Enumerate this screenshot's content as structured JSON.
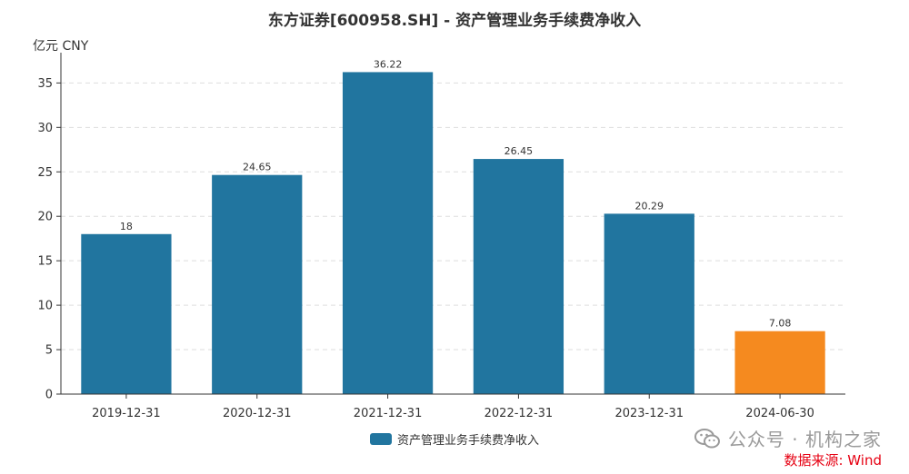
{
  "chart_data": {
    "type": "bar",
    "title": "东方证券[600958.SH] - 资产管理业务手续费净收入",
    "ylabel": "亿元  CNY",
    "xlabel": "",
    "categories": [
      "2019-12-31",
      "2020-12-31",
      "2021-12-31",
      "2022-12-31",
      "2023-12-31",
      "2024-06-30"
    ],
    "series": [
      {
        "name": "资产管理业务手续费净收入",
        "values": [
          18,
          24.65,
          36.22,
          26.45,
          20.29,
          7.08
        ],
        "data_labels": [
          "18",
          "24.65",
          "36.22",
          "26.45",
          "20.29",
          "7.08"
        ]
      }
    ],
    "ylim": [
      0,
      38
    ],
    "yticks": [
      0,
      5,
      10,
      15,
      20,
      25,
      30,
      35
    ],
    "grid": true,
    "legend_position": "bottom-center",
    "colors": {
      "bar": "#21759f",
      "highlight": "#f58a1f",
      "highlight_index": 5
    }
  },
  "footer": {
    "watermark": "公众号 · 机构之家",
    "source": "数据来源: Wind"
  }
}
